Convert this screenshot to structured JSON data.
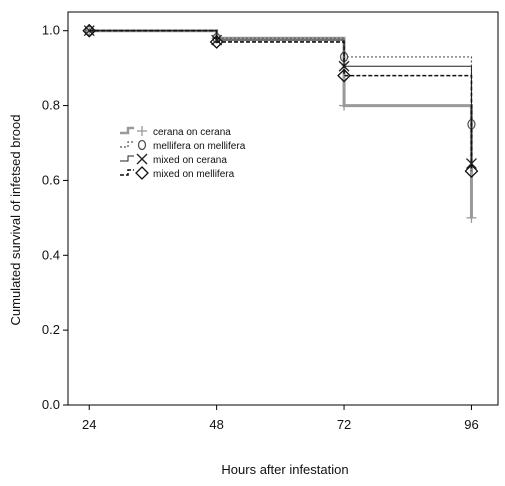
{
  "chart_data": {
    "type": "line",
    "title": "",
    "xlabel": "Hours after infestation",
    "ylabel": "Cumulated survival of infetsed brood",
    "x_ticks": [
      24,
      48,
      72,
      96
    ],
    "y_ticks": [
      "0.0",
      "0.2",
      "0.4",
      "0.6",
      "0.8",
      "1.0"
    ],
    "xlim": [
      20,
      101
    ],
    "ylim": [
      0,
      1.05
    ],
    "grid": false,
    "legend_position": "left-center",
    "step": true,
    "series": [
      {
        "name": "cerana on cerana",
        "color": "#999999",
        "line_style": "solid",
        "marker": "plus",
        "x": [
          24,
          48,
          72,
          96
        ],
        "y": [
          1.0,
          0.98,
          0.8,
          0.5
        ]
      },
      {
        "name": "mellifera on mellifera",
        "color": "#555555",
        "line_style": "dotted",
        "marker": "circle",
        "x": [
          24,
          48,
          72,
          96
        ],
        "y": [
          1.0,
          0.98,
          0.93,
          0.75
        ]
      },
      {
        "name": "mixed on cerana",
        "color": "#222222",
        "line_style": "thin-solid",
        "marker": "cross",
        "x": [
          24,
          48,
          72,
          96
        ],
        "y": [
          1.0,
          0.975,
          0.905,
          0.645
        ]
      },
      {
        "name": "mixed on mellifera",
        "color": "#111111",
        "line_style": "dashed",
        "marker": "diamond",
        "x": [
          24,
          48,
          72,
          96
        ],
        "y": [
          1.0,
          0.97,
          0.88,
          0.625
        ]
      }
    ]
  }
}
